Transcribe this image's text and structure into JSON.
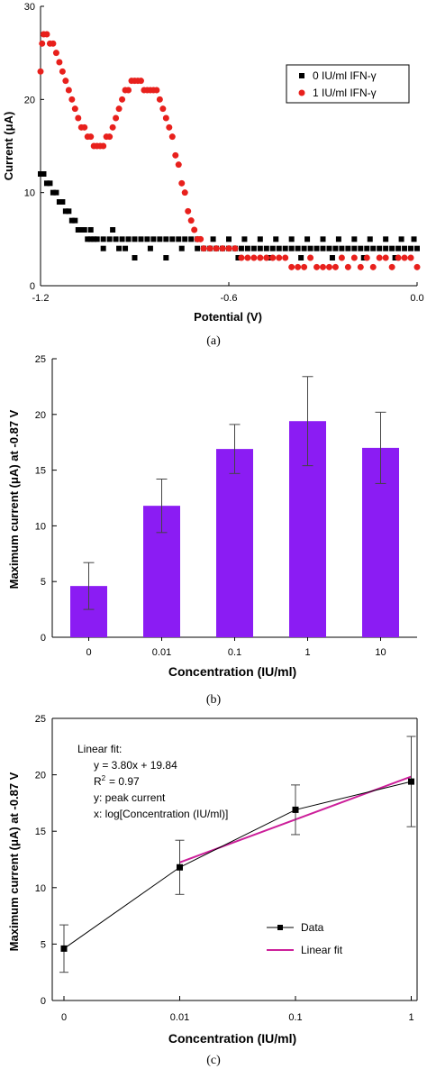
{
  "chart_data": [
    {
      "type": "scatter",
      "panel_label": "(a)",
      "xlabel": "Potential (V)",
      "ylabel": "Current (μA)",
      "xlim": [
        -1.2,
        0.0
      ],
      "ylim": [
        0,
        30
      ],
      "xticks": [
        "-1.2",
        "-0.6",
        "0.0"
      ],
      "xtick_values": [
        -1.2,
        -0.6,
        0.0
      ],
      "yticks": [
        "0",
        "10",
        "20",
        "30"
      ],
      "ytick_values": [
        0,
        10,
        20,
        30
      ],
      "legend_position": "top-right",
      "series": [
        {
          "name": "0 IU/ml IFN-γ",
          "marker": "square",
          "color": "#000000",
          "points": [
            [
              -1.2,
              12
            ],
            [
              -1.19,
              12
            ],
            [
              -1.18,
              11
            ],
            [
              -1.17,
              11
            ],
            [
              -1.16,
              10
            ],
            [
              -1.15,
              10
            ],
            [
              -1.14,
              9
            ],
            [
              -1.13,
              9
            ],
            [
              -1.12,
              8
            ],
            [
              -1.11,
              8
            ],
            [
              -1.1,
              7
            ],
            [
              -1.09,
              7
            ],
            [
              -1.08,
              6
            ],
            [
              -1.07,
              6
            ],
            [
              -1.06,
              6
            ],
            [
              -1.05,
              5
            ],
            [
              -1.04,
              5
            ],
            [
              -1.03,
              5
            ],
            [
              -1.02,
              5
            ],
            [
              -1.0,
              5
            ],
            [
              -0.98,
              5
            ],
            [
              -0.96,
              5
            ],
            [
              -0.94,
              5
            ],
            [
              -0.92,
              5
            ],
            [
              -0.9,
              5
            ],
            [
              -0.88,
              5
            ],
            [
              -0.86,
              5
            ],
            [
              -0.84,
              5
            ],
            [
              -0.82,
              5
            ],
            [
              -0.8,
              5
            ],
            [
              -0.78,
              5
            ],
            [
              -0.76,
              5
            ],
            [
              -0.74,
              5
            ],
            [
              -0.72,
              5
            ],
            [
              -0.7,
              4
            ],
            [
              -0.68,
              4
            ],
            [
              -0.66,
              4
            ],
            [
              -0.64,
              4
            ],
            [
              -0.62,
              4
            ],
            [
              -0.6,
              4
            ],
            [
              -0.58,
              4
            ],
            [
              -0.56,
              4
            ],
            [
              -0.54,
              4
            ],
            [
              -0.52,
              4
            ],
            [
              -0.5,
              4
            ],
            [
              -0.48,
              4
            ],
            [
              -0.46,
              4
            ],
            [
              -0.44,
              4
            ],
            [
              -0.42,
              4
            ],
            [
              -0.4,
              4
            ],
            [
              -0.38,
              4
            ],
            [
              -0.36,
              4
            ],
            [
              -0.34,
              4
            ],
            [
              -0.32,
              4
            ],
            [
              -0.3,
              4
            ],
            [
              -0.28,
              4
            ],
            [
              -0.26,
              4
            ],
            [
              -0.24,
              4
            ],
            [
              -0.22,
              4
            ],
            [
              -0.2,
              4
            ],
            [
              -0.18,
              4
            ],
            [
              -0.16,
              4
            ],
            [
              -0.14,
              4
            ],
            [
              -0.12,
              4
            ],
            [
              -0.1,
              4
            ],
            [
              -0.08,
              4
            ],
            [
              -0.06,
              4
            ],
            [
              -0.04,
              4
            ],
            [
              -0.02,
              4
            ],
            [
              0.0,
              4
            ],
            [
              -1.04,
              6
            ],
            [
              -1.0,
              4
            ],
            [
              -0.95,
              4
            ],
            [
              -0.9,
              3
            ],
            [
              -0.85,
              4
            ],
            [
              -0.8,
              3
            ],
            [
              -0.75,
              4
            ],
            [
              -0.7,
              5
            ],
            [
              -0.65,
              5
            ],
            [
              -0.6,
              5
            ],
            [
              -0.55,
              5
            ],
            [
              -0.5,
              5
            ],
            [
              -0.45,
              5
            ],
            [
              -0.4,
              5
            ],
            [
              -0.35,
              5
            ],
            [
              -0.3,
              5
            ],
            [
              -0.25,
              5
            ],
            [
              -0.2,
              5
            ],
            [
              -0.15,
              5
            ],
            [
              -0.1,
              5
            ],
            [
              -0.05,
              5
            ],
            [
              -0.01,
              5
            ],
            [
              -0.97,
              6
            ],
            [
              -0.93,
              4
            ],
            [
              -0.57,
              3
            ],
            [
              -0.47,
              3
            ],
            [
              -0.37,
              3
            ],
            [
              -0.27,
              3
            ],
            [
              -0.17,
              3
            ],
            [
              -0.07,
              3
            ]
          ]
        },
        {
          "name": "1 IU/ml IFN-γ",
          "marker": "circle",
          "color": "#e8201c",
          "points": [
            [
              -1.2,
              23
            ],
            [
              -1.195,
              26
            ],
            [
              -1.19,
              27
            ],
            [
              -1.18,
              27
            ],
            [
              -1.17,
              26
            ],
            [
              -1.16,
              26
            ],
            [
              -1.15,
              25
            ],
            [
              -1.14,
              24
            ],
            [
              -1.13,
              23
            ],
            [
              -1.12,
              22
            ],
            [
              -1.11,
              21
            ],
            [
              -1.1,
              20
            ],
            [
              -1.09,
              19
            ],
            [
              -1.08,
              18
            ],
            [
              -1.07,
              17
            ],
            [
              -1.06,
              17
            ],
            [
              -1.05,
              16
            ],
            [
              -1.04,
              16
            ],
            [
              -1.03,
              15
            ],
            [
              -1.02,
              15
            ],
            [
              -1.01,
              15
            ],
            [
              -1.0,
              15
            ],
            [
              -0.99,
              16
            ],
            [
              -0.98,
              16
            ],
            [
              -0.97,
              17
            ],
            [
              -0.96,
              18
            ],
            [
              -0.95,
              19
            ],
            [
              -0.94,
              20
            ],
            [
              -0.93,
              21
            ],
            [
              -0.92,
              21
            ],
            [
              -0.91,
              22
            ],
            [
              -0.9,
              22
            ],
            [
              -0.89,
              22
            ],
            [
              -0.88,
              22
            ],
            [
              -0.87,
              21
            ],
            [
              -0.86,
              21
            ],
            [
              -0.85,
              21
            ],
            [
              -0.84,
              21
            ],
            [
              -0.83,
              21
            ],
            [
              -0.82,
              20
            ],
            [
              -0.81,
              19
            ],
            [
              -0.8,
              18
            ],
            [
              -0.79,
              17
            ],
            [
              -0.78,
              16
            ],
            [
              -0.77,
              14
            ],
            [
              -0.76,
              13
            ],
            [
              -0.75,
              11
            ],
            [
              -0.74,
              10
            ],
            [
              -0.73,
              8
            ],
            [
              -0.72,
              7
            ],
            [
              -0.71,
              6
            ],
            [
              -0.7,
              5
            ],
            [
              -0.69,
              5
            ],
            [
              -0.68,
              4
            ],
            [
              -0.66,
              4
            ],
            [
              -0.64,
              4
            ],
            [
              -0.62,
              4
            ],
            [
              -0.6,
              4
            ],
            [
              -0.58,
              4
            ],
            [
              -0.56,
              3
            ],
            [
              -0.54,
              3
            ],
            [
              -0.52,
              3
            ],
            [
              -0.5,
              3
            ],
            [
              -0.48,
              3
            ],
            [
              -0.46,
              3
            ],
            [
              -0.44,
              3
            ],
            [
              -0.42,
              3
            ],
            [
              -0.4,
              2
            ],
            [
              -0.38,
              2
            ],
            [
              -0.36,
              2
            ],
            [
              -0.34,
              3
            ],
            [
              -0.32,
              2
            ],
            [
              -0.3,
              2
            ],
            [
              -0.28,
              2
            ],
            [
              -0.26,
              2
            ],
            [
              -0.24,
              3
            ],
            [
              -0.22,
              2
            ],
            [
              -0.2,
              3
            ],
            [
              -0.18,
              2
            ],
            [
              -0.16,
              3
            ],
            [
              -0.14,
              2
            ],
            [
              -0.12,
              3
            ],
            [
              -0.1,
              3
            ],
            [
              -0.08,
              2
            ],
            [
              -0.06,
              3
            ],
            [
              -0.04,
              3
            ],
            [
              -0.02,
              3
            ],
            [
              0.0,
              2
            ]
          ]
        }
      ]
    },
    {
      "type": "bar",
      "panel_label": "(b)",
      "xlabel": "Concentration (IU/ml)",
      "ylabel": "Maximum current (μA) at -0.87 V",
      "ylim": [
        0,
        25
      ],
      "yticks": [
        "0",
        "5",
        "10",
        "15",
        "20",
        "25"
      ],
      "ytick_values": [
        0,
        5,
        10,
        15,
        20,
        25
      ],
      "categories": [
        "0",
        "0.01",
        "0.1",
        "1",
        "10"
      ],
      "values": [
        4.6,
        11.8,
        16.9,
        19.4,
        17.0
      ],
      "errors": [
        2.1,
        2.4,
        2.2,
        4.0,
        3.2
      ],
      "bar_color": "#8b1cf3"
    },
    {
      "type": "line",
      "panel_label": "(c)",
      "xlabel": "Concentration (IU/ml)",
      "ylabel": "Maximum current (μA) at -0.87 V",
      "ylim": [
        0,
        25
      ],
      "yticks": [
        "0",
        "5",
        "10",
        "15",
        "20",
        "25"
      ],
      "ytick_values": [
        0,
        5,
        10,
        15,
        20,
        25
      ],
      "categories": [
        "0",
        "0.01",
        "0.1",
        "1"
      ],
      "legend_position": "bottom-right",
      "series": [
        {
          "name": "Data",
          "color": "#000000",
          "values": [
            4.6,
            11.8,
            16.9,
            19.4
          ],
          "errors": [
            2.1,
            2.4,
            2.2,
            4.0
          ]
        },
        {
          "name": "Linear fit",
          "color": "#cc1f9a",
          "fit_start_category": 1,
          "fit_x": [
            -2,
            0
          ],
          "fit_slope": 3.8,
          "fit_intercept": 19.84
        }
      ],
      "annotation": {
        "title": "Linear fit:",
        "equation": "y = 3.80x + 19.84",
        "r2": "= 0.97",
        "y_desc": "y: peak current",
        "x_desc": "x: log[Concentration (IU/ml)]"
      }
    }
  ]
}
